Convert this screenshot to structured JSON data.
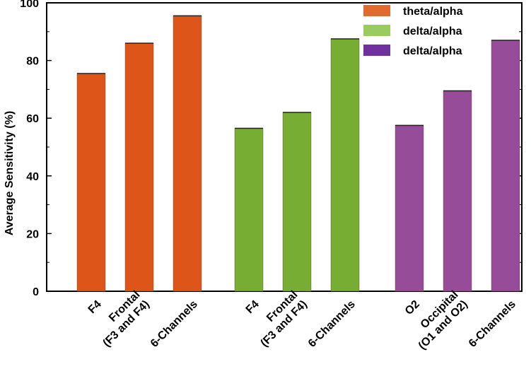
{
  "chart_data": {
    "type": "bar",
    "title": "",
    "xlabel": "",
    "ylabel": "Average Sensitivity (%)",
    "ylim": [
      0,
      100
    ],
    "yticks": [
      0,
      20,
      40,
      60,
      80,
      100
    ],
    "grid": false,
    "legend_position": "top-right",
    "groups": [
      {
        "name": "theta/alpha",
        "color": "#DD5519",
        "legend_color": "#E26A2C",
        "bars": [
          {
            "label_lines": [
              "F4"
            ],
            "value": 75.5
          },
          {
            "label_lines": [
              "Frontal",
              "(F3 and F4)"
            ],
            "value": 86
          },
          {
            "label_lines": [
              "6-Channels"
            ],
            "value": 95.5
          }
        ]
      },
      {
        "name": "delta/alpha",
        "color": "#77AD32",
        "legend_color": "#9ACB5E",
        "bars": [
          {
            "label_lines": [
              "F4"
            ],
            "value": 56.5
          },
          {
            "label_lines": [
              "Frontal",
              "(F3 and F4)"
            ],
            "value": 62
          },
          {
            "label_lines": [
              "6-Channels"
            ],
            "value": 87.5
          }
        ]
      },
      {
        "name": "delta/alpha",
        "color": "#964C98",
        "legend_color": "#7030A0",
        "bars": [
          {
            "label_lines": [
              "O2"
            ],
            "value": 57.5
          },
          {
            "label_lines": [
              "Occipital",
              "(O1 and O2)"
            ],
            "value": 69.5
          },
          {
            "label_lines": [
              "6-Channels"
            ],
            "value": 87
          }
        ]
      }
    ]
  }
}
